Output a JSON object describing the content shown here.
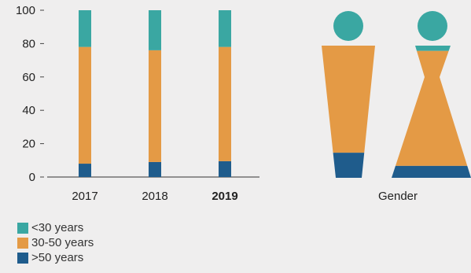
{
  "colors": {
    "young": "#3aa7a2",
    "middle": "#e49a45",
    "older": "#1f5c8c"
  },
  "chart_data": [
    {
      "type": "bar",
      "stacked": true,
      "categories": [
        "2017",
        "2018",
        "2019"
      ],
      "highlight_category": "2019",
      "series": [
        {
          "name": ">50 years",
          "values": [
            8,
            9,
            9.5
          ]
        },
        {
          "name": "30-50 years",
          "values": [
            70,
            67,
            68.5
          ]
        },
        {
          "name": "<30 years",
          "values": [
            22,
            24,
            22
          ]
        }
      ],
      "yticks": [
        0,
        20,
        40,
        60,
        80,
        100
      ],
      "ylim": [
        0,
        100
      ],
      "grid": false,
      "legend_position": "bottom-left"
    },
    {
      "type": "pictogram",
      "xlabel": "Gender",
      "categories": [
        "Male",
        "Female"
      ],
      "series": [
        {
          "name": ">50 years",
          "values": [
            19,
            9
          ]
        },
        {
          "name": "30-50 years",
          "values": [
            81,
            87
          ]
        },
        {
          "name": "<30 years",
          "values": [
            0,
            4
          ]
        }
      ]
    }
  ],
  "legend": [
    {
      "label": "<30 years",
      "color": "#3aa7a2"
    },
    {
      "label": "30-50 years",
      "color": "#e49a45"
    },
    {
      "label": ">50 years",
      "color": "#1f5c8c"
    }
  ]
}
